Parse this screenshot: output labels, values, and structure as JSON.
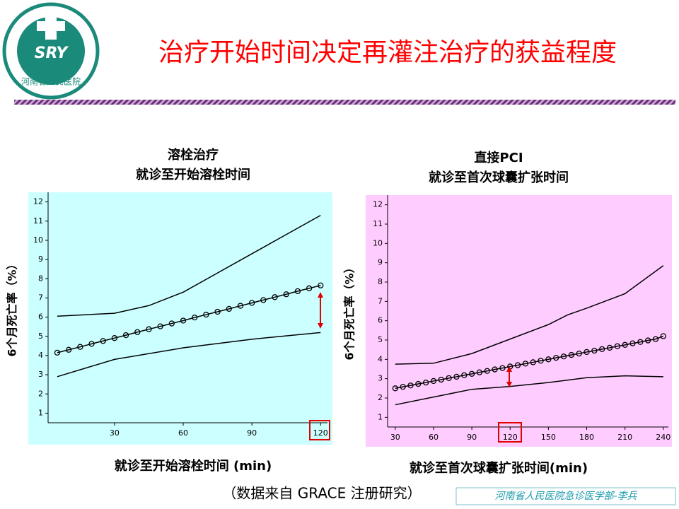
{
  "slide": {
    "title": "治疗开始时间决定再灌注治疗的获益程度",
    "logo_text": "河南省人民医院",
    "logo_mark": "SRY",
    "footnote": "（数据来自 GRACE 注册研究）",
    "author": "河南省人民医院急诊医学部-李兵"
  },
  "chart_data": [
    {
      "type": "line",
      "title": "溶栓治疗",
      "subtitle": "就诊至开始溶栓时间",
      "x_label": "就诊至开始溶栓时间 (min)",
      "y_label": "6个月死亡率（%）",
      "background": "#ccffff",
      "xlim": [
        1,
        123
      ],
      "ylim": [
        0.5,
        12.5
      ],
      "xticks": [
        30,
        60,
        90,
        120
      ],
      "yticks": [
        1,
        2,
        3,
        4,
        5,
        6,
        7,
        8,
        9,
        10,
        11,
        12
      ],
      "series": [
        {
          "color": "#000000",
          "marker": "circle",
          "x": [
            5,
            10,
            15,
            20,
            25,
            30,
            35,
            40,
            45,
            50,
            55,
            60,
            65,
            70,
            75,
            80,
            85,
            90,
            95,
            100,
            105,
            110,
            115,
            120
          ],
          "values": [
            4.15,
            4.3,
            4.45,
            4.61,
            4.76,
            4.91,
            5.06,
            5.22,
            5.37,
            5.52,
            5.67,
            5.82,
            5.98,
            6.13,
            6.28,
            6.43,
            6.59,
            6.74,
            6.89,
            7.04,
            7.19,
            7.35,
            7.5,
            7.65
          ]
        },
        {
          "color": "#000000",
          "x": [
            5,
            30,
            45,
            60,
            75,
            90,
            105,
            120
          ],
          "values": [
            6.05,
            6.2,
            6.6,
            7.3,
            8.3,
            9.3,
            10.3,
            11.3
          ]
        },
        {
          "color": "#000000",
          "x": [
            5,
            30,
            60,
            90,
            120
          ],
          "values": [
            2.9,
            3.8,
            4.4,
            4.85,
            5.2
          ]
        }
      ]
    },
    {
      "type": "line",
      "title": "直接PCI",
      "subtitle": "就诊至首次球囊扩张时间",
      "x_label": "就诊至首次球囊扩张时间(min)",
      "y_label": "6个月死亡率（%）",
      "background": "#ffccff",
      "xlim": [
        24,
        244
      ],
      "ylim": [
        0.5,
        12.5
      ],
      "xticks": [
        30,
        60,
        90,
        120,
        150,
        180,
        210,
        240
      ],
      "yticks": [
        1,
        2,
        3,
        4,
        5,
        6,
        7,
        8,
        9,
        10,
        11,
        12
      ],
      "series": [
        {
          "color": "#000000",
          "marker": "circle",
          "x": [
            30,
            36,
            42,
            48,
            54,
            60,
            66,
            72,
            78,
            84,
            90,
            96,
            102,
            108,
            114,
            120,
            126,
            132,
            138,
            144,
            150,
            156,
            162,
            168,
            174,
            180,
            186,
            192,
            198,
            204,
            210,
            216,
            222,
            228,
            234,
            240
          ],
          "values": [
            2.5,
            2.58,
            2.65,
            2.73,
            2.8,
            2.88,
            2.95,
            3.03,
            3.1,
            3.18,
            3.25,
            3.33,
            3.4,
            3.48,
            3.55,
            3.63,
            3.7,
            3.78,
            3.85,
            3.93,
            4.0,
            4.08,
            4.15,
            4.23,
            4.3,
            4.38,
            4.45,
            4.53,
            4.6,
            4.68,
            4.75,
            4.83,
            4.9,
            4.98,
            5.05,
            5.2
          ]
        },
        {
          "color": "#000000",
          "x": [
            30,
            60,
            90,
            120,
            150,
            165,
            180,
            210,
            240
          ],
          "values": [
            3.75,
            3.8,
            4.3,
            5.05,
            5.8,
            6.3,
            6.65,
            7.4,
            8.85
          ]
        },
        {
          "color": "#000000",
          "x": [
            30,
            60,
            90,
            120,
            150,
            180,
            210,
            240
          ],
          "values": [
            1.65,
            2.05,
            2.45,
            2.6,
            2.8,
            3.05,
            3.15,
            3.1
          ]
        }
      ]
    }
  ]
}
